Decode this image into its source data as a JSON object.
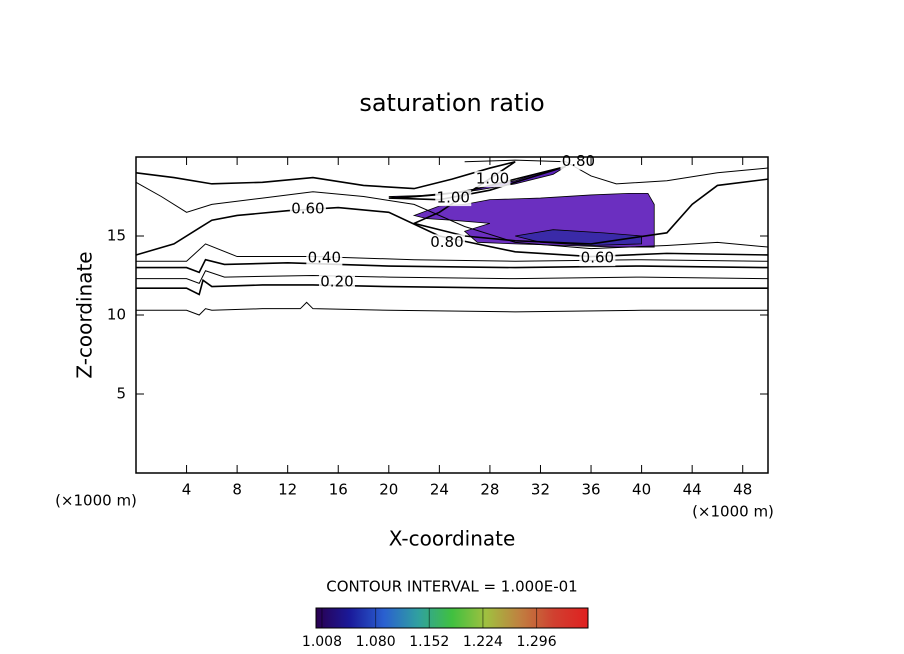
{
  "chart_data": {
    "type": "contour",
    "title": "saturation ratio",
    "xlabel": "X-coordinate",
    "ylabel": "Z-coordinate",
    "x_unit": "(×1000 m)",
    "y_unit": "(×1000 m)",
    "xlim": [
      0,
      50
    ],
    "ylim": [
      0,
      20
    ],
    "xticks": [
      4,
      8,
      12,
      16,
      20,
      24,
      28,
      32,
      36,
      40,
      44,
      48
    ],
    "yticks": [
      5,
      10,
      15
    ],
    "contour_interval": "CONTOUR INTERVAL = 1.000E-01",
    "line_color": "#000000",
    "filled": [
      {
        "value": 1.05,
        "color": "#5a22b8",
        "x": [
          20,
          24,
          27,
          30,
          32,
          34,
          33,
          30,
          27,
          24,
          21
        ],
        "y": [
          17.5,
          17.6,
          18.0,
          18.5,
          19.0,
          19.4,
          18.9,
          18.3,
          17.9,
          17.6,
          17.4
        ]
      },
      {
        "value": 1.03,
        "color": "#6b2fc0",
        "x": [
          22,
          24,
          26,
          28,
          32,
          36,
          39,
          40.5,
          41,
          41,
          38,
          34,
          30,
          27,
          26,
          28,
          25,
          23
        ],
        "y": [
          16.3,
          16.9,
          17.0,
          17.3,
          17.4,
          17.6,
          17.7,
          17.7,
          17.0,
          14.3,
          14.3,
          14.4,
          14.5,
          14.6,
          15.3,
          15.8,
          16.0,
          16.1
        ]
      },
      {
        "value": 1.07,
        "color": "#3a2aa8",
        "x": [
          30,
          33,
          37,
          40,
          40,
          36,
          32
        ],
        "y": [
          15.0,
          15.4,
          15.2,
          15.0,
          14.5,
          14.4,
          14.6
        ]
      }
    ],
    "contours": [
      {
        "level": 0.1,
        "x": [
          0,
          4,
          5,
          5.5,
          6,
          10,
          13,
          13.5,
          14,
          20,
          30,
          40,
          50
        ],
        "y": [
          10.3,
          10.3,
          10.0,
          10.4,
          10.3,
          10.4,
          10.4,
          10.8,
          10.4,
          10.3,
          10.2,
          10.3,
          10.3
        ]
      },
      {
        "level": 0.2,
        "x": [
          0,
          4,
          5,
          5.3,
          6,
          10,
          14,
          20,
          30,
          40,
          50
        ],
        "y": [
          11.7,
          11.7,
          11.3,
          12.2,
          11.8,
          11.9,
          11.9,
          11.8,
          11.7,
          11.7,
          11.7
        ]
      },
      {
        "level": 0.3,
        "x": [
          0,
          4,
          5,
          5.5,
          7,
          14,
          20,
          30,
          40,
          50
        ],
        "y": [
          12.3,
          12.3,
          12.0,
          12.8,
          12.4,
          12.5,
          12.4,
          12.3,
          12.4,
          12.3
        ]
      },
      {
        "level": 0.4,
        "x": [
          0,
          4,
          5,
          5.5,
          7,
          12,
          20,
          30,
          40,
          50
        ],
        "y": [
          13.0,
          13.0,
          12.7,
          13.5,
          13.2,
          13.3,
          13.1,
          13.0,
          13.1,
          13.0
        ]
      },
      {
        "level": 0.5,
        "x": [
          0,
          4,
          5.5,
          8,
          14,
          22,
          30,
          40,
          50
        ],
        "y": [
          13.4,
          13.4,
          14.5,
          13.7,
          13.7,
          13.5,
          13.4,
          13.5,
          13.4
        ]
      },
      {
        "level": 0.6,
        "x": [
          0,
          3,
          5,
          6,
          8,
          12,
          16,
          20,
          24,
          30,
          36,
          42,
          50
        ],
        "y": [
          13.8,
          14.5,
          15.5,
          16.0,
          16.3,
          16.6,
          16.8,
          16.5,
          15.0,
          14.0,
          13.7,
          13.9,
          13.8
        ]
      },
      {
        "level": 0.7,
        "x": [
          0,
          2,
          4,
          6,
          10,
          14,
          18,
          22,
          26,
          30,
          36,
          42,
          46,
          50
        ],
        "y": [
          18.4,
          17.5,
          16.5,
          17.0,
          17.4,
          17.8,
          17.5,
          17.0,
          15.6,
          14.6,
          14.2,
          14.4,
          14.6,
          14.3
        ]
      },
      {
        "level": 0.8,
        "x": [
          0,
          3,
          6,
          10,
          14,
          18,
          22,
          25,
          28,
          30,
          24,
          22,
          26,
          30,
          36,
          42,
          44,
          46,
          50
        ],
        "y": [
          19.0,
          18.7,
          18.3,
          18.4,
          18.7,
          18.2,
          18.0,
          18.6,
          19.3,
          19.7,
          16.5,
          15.8,
          15.0,
          14.7,
          14.5,
          15.2,
          17.0,
          18.2,
          18.6
        ]
      },
      {
        "level": 0.9,
        "x": [
          26,
          30,
          34,
          36,
          38,
          42,
          46,
          50
        ],
        "y": [
          19.7,
          19.8,
          19.7,
          18.8,
          18.3,
          18.5,
          19.0,
          19.3
        ]
      },
      {
        "level": 1.0,
        "x": [
          20,
          24,
          28,
          32,
          34,
          30,
          26,
          22,
          20
        ],
        "y": [
          17.4,
          17.3,
          17.9,
          18.9,
          19.4,
          18.6,
          17.8,
          17.5,
          17.4
        ]
      }
    ],
    "contour_labels": [
      {
        "value": 0.2,
        "label": "0.20",
        "x": 15.9,
        "y": 12.1
      },
      {
        "value": 0.4,
        "label": "0.40",
        "x": 14.9,
        "y": 13.6
      },
      {
        "value": 0.6,
        "label": "0.60",
        "x": 13.6,
        "y": 16.7
      },
      {
        "value": 0.6,
        "label": "0.60",
        "x": 36.5,
        "y": 13.6
      },
      {
        "value": 0.8,
        "label": "0.80",
        "x": 24.6,
        "y": 14.6
      },
      {
        "value": 0.8,
        "label": "0.80",
        "x": 35.0,
        "y": 19.7
      },
      {
        "value": 1.0,
        "label": "1.00",
        "x": 28.2,
        "y": 18.6
      },
      {
        "value": 1.0,
        "label": "1.00",
        "x": 25.1,
        "y": 17.4
      }
    ],
    "colorbar": {
      "lim": [
        1.0,
        1.365
      ],
      "ticks": [
        1.008,
        {
          "value": 1.08,
          "label": "1.080"
        },
        1.152,
        1.224,
        1.296
      ],
      "colors": [
        "#2a0050",
        "#1a1a9a",
        "#2a60d0",
        "#30a0a0",
        "#40c040",
        "#a0c040",
        "#c08040",
        "#d04030",
        "#e02020"
      ]
    }
  }
}
